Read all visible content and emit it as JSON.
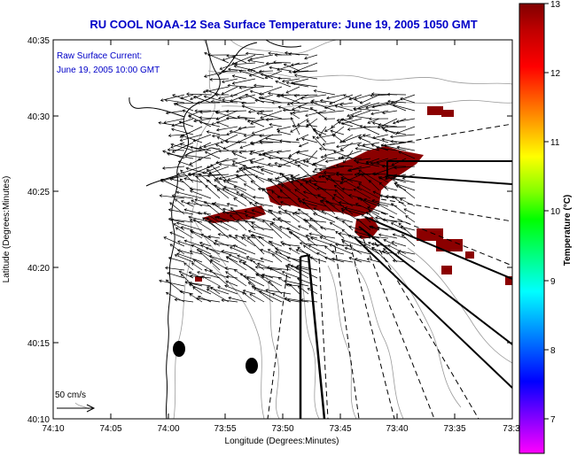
{
  "title": "RU COOL  NOAA-12  Sea Surface Temperature:  June 19, 2005 1050 GMT",
  "annotations": {
    "current_label": "Raw Surface Current:",
    "current_time": "June 19, 2005 10:00 GMT",
    "scale_label": "50 cm/s"
  },
  "axes": {
    "xlabel": "Longitude (Degrees:Minutes)",
    "ylabel": "Latitude (Degrees:Minutes)",
    "xticks": [
      "74:10",
      "74:05",
      "74:00",
      "73:55",
      "73:50",
      "73:45",
      "73:40",
      "73:35",
      "73:3"
    ],
    "yticks": [
      "40:35",
      "40:30",
      "40:25",
      "40:20",
      "40:15",
      "40:10"
    ]
  },
  "colorbar": {
    "label": "Temperature (°C)",
    "min": 6.5,
    "max": 13,
    "ticks": [
      "13",
      "12",
      "11",
      "10",
      "9",
      "8",
      "7"
    ],
    "colors": [
      "#ff00ff",
      "#8000ff",
      "#0000ff",
      "#0080ff",
      "#00ffff",
      "#00ff80",
      "#00ff00",
      "#80ff00",
      "#ffff00",
      "#ff8000",
      "#ff0000",
      "#c00000",
      "#800000"
    ]
  },
  "colors": {
    "title": "#0000c8",
    "sst_patch": "#8b0000",
    "arrows": "#000000",
    "coastline": "#000000",
    "bathymetry": "#999999"
  }
}
